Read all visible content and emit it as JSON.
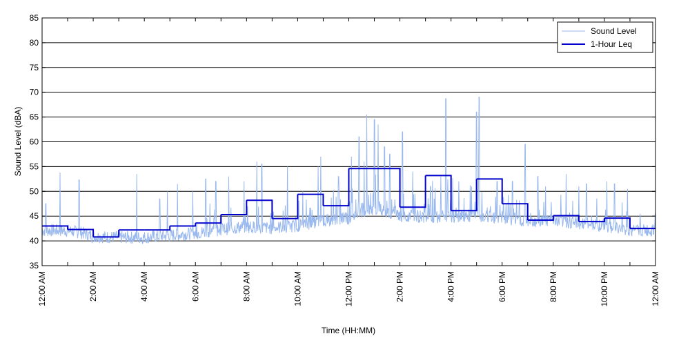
{
  "chart_data": {
    "type": "line",
    "title": "",
    "xlabel": "Time (HH:MM)",
    "ylabel": "Sound Level (dBA)",
    "ylim": [
      35,
      85
    ],
    "yticks": [
      35,
      40,
      45,
      50,
      55,
      60,
      65,
      70,
      75,
      80,
      85
    ],
    "xlim_hours": [
      0,
      24
    ],
    "xtick_labels": [
      "12:00 AM",
      "2:00 AM",
      "4:00 AM",
      "6:00 AM",
      "8:00 AM",
      "10:00 AM",
      "12:00 PM",
      "2:00 PM",
      "4:00 PM",
      "6:00 PM",
      "8:00 PM",
      "10:00 PM",
      "12:00 AM"
    ],
    "xtick_hours": [
      0,
      2,
      4,
      6,
      8,
      10,
      12,
      14,
      16,
      18,
      20,
      22,
      24
    ],
    "minor_tick_hours": [
      1,
      3,
      5,
      7,
      9,
      11,
      13,
      15,
      17,
      19,
      21,
      23
    ],
    "grid": true,
    "legend_position": "top-right",
    "series": [
      {
        "name": "Sound Level",
        "color": "#99b8ee",
        "style": "thin-line",
        "baseline": [
          {
            "h": 0,
            "v": 42.0
          },
          {
            "h": 1,
            "v": 42.0
          },
          {
            "h": 1.6,
            "v": 41.5
          },
          {
            "h": 2,
            "v": 40.8
          },
          {
            "h": 3,
            "v": 40.6
          },
          {
            "h": 4,
            "v": 40.6
          },
          {
            "h": 5,
            "v": 41.0
          },
          {
            "h": 6,
            "v": 41.5
          },
          {
            "h": 7,
            "v": 42.2
          },
          {
            "h": 8,
            "v": 42.8
          },
          {
            "h": 9,
            "v": 42.5
          },
          {
            "h": 10,
            "v": 43.0
          },
          {
            "h": 11,
            "v": 44.0
          },
          {
            "h": 12,
            "v": 44.5
          },
          {
            "h": 13,
            "v": 46.5
          },
          {
            "h": 14,
            "v": 45.0
          },
          {
            "h": 15,
            "v": 44.8
          },
          {
            "h": 16,
            "v": 44.8
          },
          {
            "h": 17,
            "v": 45.0
          },
          {
            "h": 18,
            "v": 44.5
          },
          {
            "h": 19,
            "v": 44.0
          },
          {
            "h": 20,
            "v": 44.0
          },
          {
            "h": 21,
            "v": 43.5
          },
          {
            "h": 22,
            "v": 43.0
          },
          {
            "h": 23,
            "v": 42.0
          },
          {
            "h": 24,
            "v": 42.0
          }
        ],
        "peaks": [
          {
            "h": 0.15,
            "v": 47.5
          },
          {
            "h": 0.7,
            "v": 46.0
          },
          {
            "h": 0.7,
            "v": 53.8
          },
          {
            "h": 1.45,
            "v": 52.3
          },
          {
            "h": 3.7,
            "v": 53.5
          },
          {
            "h": 4.6,
            "v": 48.5
          },
          {
            "h": 4.9,
            "v": 50.0
          },
          {
            "h": 5.3,
            "v": 51.5
          },
          {
            "h": 5.9,
            "v": 50.0
          },
          {
            "h": 6.4,
            "v": 52.5
          },
          {
            "h": 6.8,
            "v": 52.0
          },
          {
            "h": 7.3,
            "v": 53.0
          },
          {
            "h": 7.9,
            "v": 52.0
          },
          {
            "h": 8.4,
            "v": 56.0
          },
          {
            "h": 8.6,
            "v": 55.5
          },
          {
            "h": 9.6,
            "v": 55.0
          },
          {
            "h": 10.2,
            "v": 50.0
          },
          {
            "h": 10.8,
            "v": 55.0
          },
          {
            "h": 10.9,
            "v": 57.0
          },
          {
            "h": 11.6,
            "v": 53.0
          },
          {
            "h": 12.1,
            "v": 57.0
          },
          {
            "h": 12.4,
            "v": 61.0
          },
          {
            "h": 12.6,
            "v": 56.0
          },
          {
            "h": 12.7,
            "v": 65.5
          },
          {
            "h": 13.0,
            "v": 64.5
          },
          {
            "h": 13.15,
            "v": 63.5
          },
          {
            "h": 13.4,
            "v": 59.0
          },
          {
            "h": 13.6,
            "v": 57.5
          },
          {
            "h": 14.1,
            "v": 62.0
          },
          {
            "h": 14.5,
            "v": 54.0
          },
          {
            "h": 15.2,
            "v": 51.0
          },
          {
            "h": 15.6,
            "v": 53.0
          },
          {
            "h": 15.8,
            "v": 68.7
          },
          {
            "h": 16.3,
            "v": 52.0
          },
          {
            "h": 16.8,
            "v": 51.0
          },
          {
            "h": 17.0,
            "v": 66.0
          },
          {
            "h": 17.1,
            "v": 69.0
          },
          {
            "h": 17.8,
            "v": 52.0
          },
          {
            "h": 18.4,
            "v": 52.0
          },
          {
            "h": 18.9,
            "v": 59.5
          },
          {
            "h": 19.4,
            "v": 53.0
          },
          {
            "h": 19.7,
            "v": 51.0
          },
          {
            "h": 20.5,
            "v": 53.5
          },
          {
            "h": 21.0,
            "v": 51.0
          },
          {
            "h": 21.3,
            "v": 51.5
          },
          {
            "h": 22.1,
            "v": 52.0
          },
          {
            "h": 22.4,
            "v": 51.5
          },
          {
            "h": 22.9,
            "v": 50.5
          },
          {
            "h": 23.4,
            "v": 45.5
          }
        ]
      },
      {
        "name": "1-Hour Leq",
        "color": "#0000cc",
        "style": "step",
        "hourly_values": [
          43.0,
          42.3,
          40.8,
          42.2,
          42.2,
          43.0,
          43.6,
          45.3,
          48.2,
          44.5,
          49.4,
          47.1,
          54.6,
          54.6,
          46.8,
          53.2,
          46.1,
          52.5,
          47.5,
          44.2,
          45.1,
          43.9,
          44.6,
          42.5
        ]
      }
    ]
  }
}
